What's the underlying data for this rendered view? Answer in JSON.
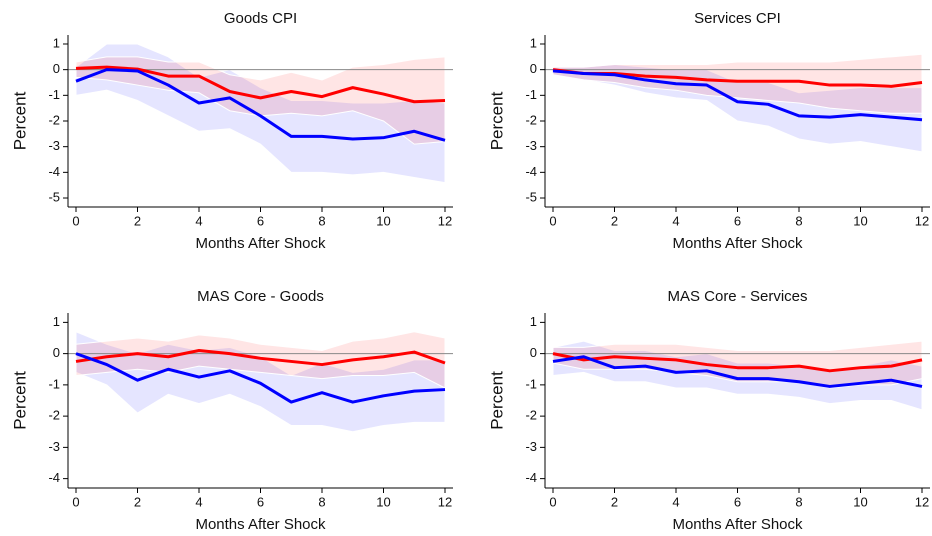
{
  "chart_data": [
    {
      "type": "line",
      "title": "Goods CPI",
      "xlabel": "Months After Shock",
      "ylabel": "Percent",
      "x": [
        0,
        1,
        2,
        3,
        4,
        5,
        6,
        7,
        8,
        9,
        10,
        11,
        12
      ],
      "xlim": [
        -0.26,
        12.26
      ],
      "xticks": [
        0,
        2,
        4,
        6,
        8,
        10,
        12
      ],
      "ylim": [
        -5.35,
        1.35
      ],
      "yticks": [
        1,
        0,
        -1,
        -2,
        -3,
        -4,
        -5
      ],
      "series": [
        {
          "color": "#0000ff",
          "values": [
            -0.45,
            0,
            -0.05,
            -0.6,
            -1.3,
            -1.1,
            -1.8,
            -2.6,
            -2.6,
            -2.7,
            -2.65,
            -2.4,
            -2.75
          ],
          "upper": [
            0.1,
            1.0,
            1.0,
            0.5,
            -0.3,
            0,
            -0.7,
            -1.2,
            -1.2,
            -1.3,
            -1.3,
            -1.2,
            -1.3
          ],
          "lower": [
            -1.0,
            -0.8,
            -1.2,
            -1.8,
            -2.4,
            -2.3,
            -2.9,
            -4.0,
            -4.0,
            -4.1,
            -4.0,
            -4.2,
            -4.4
          ]
        },
        {
          "color": "#ff0000",
          "values": [
            0.05,
            0.1,
            0.02,
            -0.25,
            -0.25,
            -0.85,
            -1.1,
            -0.85,
            -1.05,
            -0.7,
            -0.95,
            -1.25,
            -1.2
          ],
          "upper": [
            0.3,
            0.5,
            0.5,
            0.3,
            0.3,
            -0.2,
            -0.4,
            -0.1,
            -0.4,
            0.1,
            0.2,
            0.4,
            0.5
          ],
          "lower": [
            -0.3,
            -0.4,
            -0.6,
            -0.8,
            -0.9,
            -1.6,
            -1.8,
            -1.7,
            -1.8,
            -1.6,
            -2.0,
            -2.9,
            -2.8
          ]
        }
      ]
    },
    {
      "type": "line",
      "title": "Services CPI",
      "xlabel": "Months After Shock",
      "ylabel": "Percent",
      "x": [
        0,
        1,
        2,
        3,
        4,
        5,
        6,
        7,
        8,
        9,
        10,
        11,
        12
      ],
      "xlim": [
        -0.26,
        12.26
      ],
      "xticks": [
        0,
        2,
        4,
        6,
        8,
        10,
        12
      ],
      "ylim": [
        -5.35,
        1.35
      ],
      "yticks": [
        1,
        0,
        -1,
        -2,
        -3,
        -4,
        -5
      ],
      "series": [
        {
          "color": "#0000ff",
          "values": [
            -0.05,
            -0.15,
            -0.2,
            -0.4,
            -0.55,
            -0.6,
            -1.25,
            -1.35,
            -1.8,
            -1.85,
            -1.75,
            -1.85,
            -1.95
          ],
          "upper": [
            0.1,
            0.1,
            0.2,
            0.1,
            0,
            0,
            -0.5,
            -0.5,
            -0.9,
            -0.8,
            -0.7,
            -0.7,
            -0.7
          ],
          "lower": [
            -0.2,
            -0.4,
            -0.6,
            -0.9,
            -1.1,
            -1.2,
            -2.0,
            -2.2,
            -2.7,
            -2.9,
            -2.8,
            -3.0,
            -3.2
          ]
        },
        {
          "color": "#ff0000",
          "values": [
            0,
            -0.15,
            -0.15,
            -0.25,
            -0.3,
            -0.4,
            -0.45,
            -0.45,
            -0.45,
            -0.6,
            -0.6,
            -0.65,
            -0.5
          ],
          "upper": [
            0.1,
            0.1,
            0.2,
            0.2,
            0.2,
            0.2,
            0.3,
            0.3,
            0.3,
            0.3,
            0.4,
            0.5,
            0.6
          ],
          "lower": [
            -0.2,
            -0.4,
            -0.5,
            -0.7,
            -0.8,
            -1.0,
            -1.1,
            -1.2,
            -1.3,
            -1.5,
            -1.6,
            -1.7,
            -1.7
          ]
        }
      ]
    },
    {
      "type": "line",
      "title": "MAS Core - Goods",
      "xlabel": "Months After Shock",
      "ylabel": "Percent",
      "x": [
        0,
        1,
        2,
        3,
        4,
        5,
        6,
        7,
        8,
        9,
        10,
        11,
        12
      ],
      "xlim": [
        -0.26,
        12.26
      ],
      "xticks": [
        0,
        2,
        4,
        6,
        8,
        10,
        12
      ],
      "ylim": [
        -4.3,
        1.3
      ],
      "yticks": [
        1,
        0,
        -1,
        -2,
        -3,
        -4
      ],
      "series": [
        {
          "color": "#0000ff",
          "values": [
            0,
            -0.35,
            -0.85,
            -0.5,
            -0.75,
            -0.55,
            -0.95,
            -1.55,
            -1.25,
            -1.55,
            -1.35,
            -1.2,
            -1.15
          ],
          "upper": [
            0.7,
            0.3,
            0,
            0.3,
            0.1,
            0.2,
            -0.1,
            -0.7,
            -0.3,
            -0.6,
            -0.5,
            -0.2,
            -0.2
          ],
          "lower": [
            -0.6,
            -1.0,
            -1.9,
            -1.3,
            -1.6,
            -1.3,
            -1.7,
            -2.3,
            -2.3,
            -2.5,
            -2.3,
            -2.2,
            -2.2
          ]
        },
        {
          "color": "#ff0000",
          "values": [
            -0.25,
            -0.1,
            0,
            -0.1,
            0.1,
            0,
            -0.15,
            -0.25,
            -0.35,
            -0.2,
            -0.1,
            0.05,
            -0.3
          ],
          "upper": [
            0.3,
            0.4,
            0.5,
            0.4,
            0.6,
            0.5,
            0.3,
            0.2,
            0.1,
            0.4,
            0.5,
            0.7,
            0.5
          ],
          "lower": [
            -0.7,
            -0.6,
            -0.5,
            -0.6,
            -0.4,
            -0.5,
            -0.6,
            -0.7,
            -0.8,
            -0.7,
            -0.7,
            -0.6,
            -1.1
          ]
        }
      ]
    },
    {
      "type": "line",
      "title": "MAS Core - Services",
      "xlabel": "Months After Shock",
      "ylabel": "Percent",
      "x": [
        0,
        1,
        2,
        3,
        4,
        5,
        6,
        7,
        8,
        9,
        10,
        11,
        12
      ],
      "xlim": [
        -0.26,
        12.26
      ],
      "xticks": [
        0,
        2,
        4,
        6,
        8,
        10,
        12
      ],
      "ylim": [
        -4.3,
        1.3
      ],
      "yticks": [
        1,
        0,
        -1,
        -2,
        -3,
        -4
      ],
      "series": [
        {
          "color": "#0000ff",
          "values": [
            -0.25,
            -0.1,
            -0.45,
            -0.4,
            -0.6,
            -0.55,
            -0.8,
            -0.8,
            -0.9,
            -1.05,
            -0.95,
            -0.85,
            -1.05
          ],
          "upper": [
            0.2,
            0.4,
            0.1,
            0.1,
            -0.1,
            0,
            -0.3,
            -0.3,
            -0.4,
            -0.5,
            -0.4,
            -0.2,
            -0.4
          ],
          "lower": [
            -0.7,
            -0.6,
            -0.9,
            -0.9,
            -1.1,
            -1.1,
            -1.3,
            -1.3,
            -1.4,
            -1.6,
            -1.5,
            -1.5,
            -1.8
          ]
        },
        {
          "color": "#ff0000",
          "values": [
            0,
            -0.2,
            -0.1,
            -0.15,
            -0.2,
            -0.35,
            -0.45,
            -0.45,
            -0.4,
            -0.55,
            -0.45,
            -0.4,
            -0.2
          ],
          "upper": [
            0.2,
            0.2,
            0.3,
            0.3,
            0.3,
            0.2,
            0.1,
            0.1,
            0.1,
            0.1,
            0.2,
            0.3,
            0.4
          ],
          "lower": [
            -0.3,
            -0.5,
            -0.5,
            -0.5,
            -0.6,
            -0.7,
            -0.9,
            -0.9,
            -0.9,
            -1.1,
            -1.0,
            -1.0,
            -0.8
          ]
        }
      ]
    }
  ]
}
